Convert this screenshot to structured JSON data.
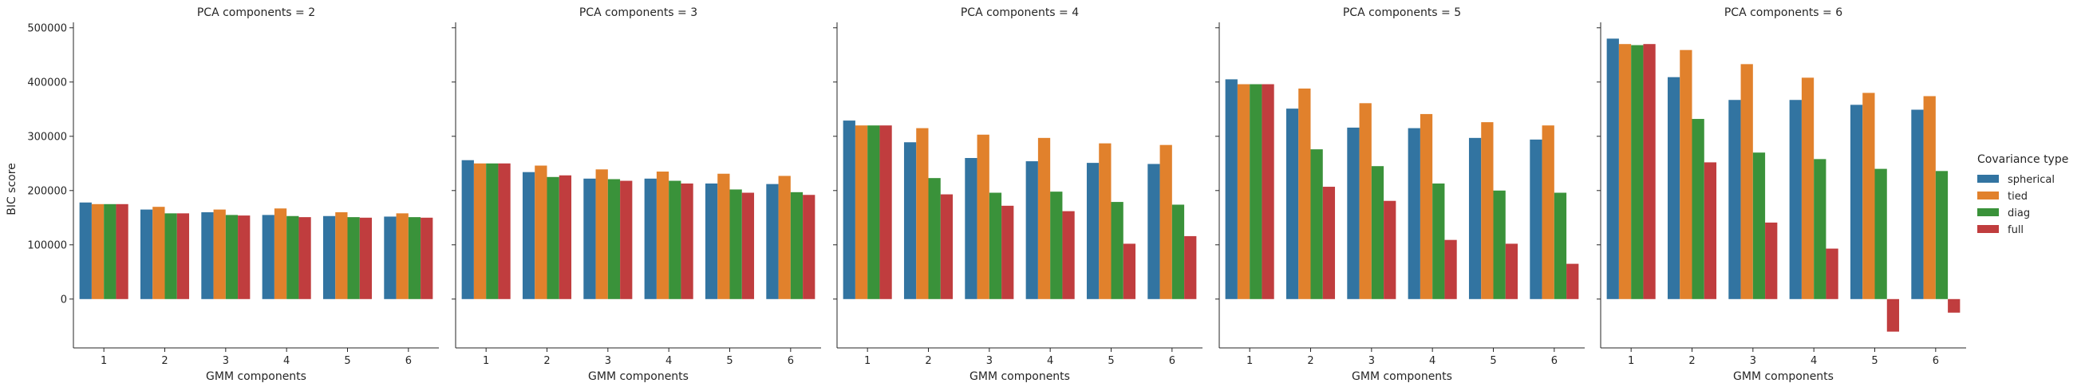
{
  "chart_data": {
    "type": "bar",
    "ylabel": "BIC score",
    "xlabel": "GMM components",
    "ylim": [
      -90000,
      510000
    ],
    "yticks": [
      0,
      100000,
      200000,
      300000,
      400000,
      500000
    ],
    "categories": [
      "1",
      "2",
      "3",
      "4",
      "5",
      "6"
    ],
    "legend": {
      "title": "Covariance type",
      "placement": "right",
      "entries": [
        "spherical",
        "tied",
        "diag",
        "full"
      ]
    },
    "colors": {
      "spherical": "#3274a1",
      "tied": "#e1812c",
      "diag": "#3a923a",
      "full": "#c03d3e"
    },
    "panels": [
      {
        "title": "PCA components = 2",
        "series": [
          {
            "name": "spherical",
            "values": [
              178000,
              165000,
              160000,
              155000,
              153000,
              152000
            ]
          },
          {
            "name": "tied",
            "values": [
              175000,
              170000,
              165000,
              167000,
              160000,
              158000
            ]
          },
          {
            "name": "diag",
            "values": [
              175000,
              158000,
              155000,
              153000,
              151000,
              151000
            ]
          },
          {
            "name": "full",
            "values": [
              175000,
              158000,
              154000,
              151000,
              150000,
              150000
            ]
          }
        ]
      },
      {
        "title": "PCA components = 3",
        "series": [
          {
            "name": "spherical",
            "values": [
              256000,
              234000,
              222000,
              222000,
              213000,
              212000
            ]
          },
          {
            "name": "tied",
            "values": [
              250000,
              246000,
              239000,
              235000,
              231000,
              227000
            ]
          },
          {
            "name": "diag",
            "values": [
              250000,
              225000,
              221000,
              218000,
              202000,
              197000
            ]
          },
          {
            "name": "full",
            "values": [
              250000,
              228000,
              218000,
              213000,
              196000,
              192000
            ]
          }
        ]
      },
      {
        "title": "PCA components = 4",
        "series": [
          {
            "name": "spherical",
            "values": [
              329000,
              289000,
              260000,
              254000,
              251000,
              249000
            ]
          },
          {
            "name": "tied",
            "values": [
              320000,
              315000,
              303000,
              297000,
              287000,
              284000
            ]
          },
          {
            "name": "diag",
            "values": [
              320000,
              223000,
              196000,
              198000,
              179000,
              174000
            ]
          },
          {
            "name": "full",
            "values": [
              320000,
              193000,
              172000,
              162000,
              102000,
              116000
            ]
          }
        ]
      },
      {
        "title": "PCA components = 5",
        "series": [
          {
            "name": "spherical",
            "values": [
              405000,
              351000,
              316000,
              315000,
              297000,
              294000
            ]
          },
          {
            "name": "tied",
            "values": [
              396000,
              388000,
              361000,
              341000,
              326000,
              320000
            ]
          },
          {
            "name": "diag",
            "values": [
              396000,
              276000,
              245000,
              213000,
              200000,
              196000
            ]
          },
          {
            "name": "full",
            "values": [
              396000,
              207000,
              181000,
              109000,
              102000,
              65000
            ]
          }
        ]
      },
      {
        "title": "PCA components = 6",
        "series": [
          {
            "name": "spherical",
            "values": [
              480000,
              409000,
              367000,
              367000,
              358000,
              349000
            ]
          },
          {
            "name": "tied",
            "values": [
              470000,
              459000,
              433000,
              408000,
              380000,
              374000
            ]
          },
          {
            "name": "diag",
            "values": [
              468000,
              332000,
              270000,
              258000,
              240000,
              236000
            ]
          },
          {
            "name": "full",
            "values": [
              470000,
              252000,
              141000,
              93000,
              -60000,
              -25000
            ]
          }
        ]
      }
    ]
  }
}
